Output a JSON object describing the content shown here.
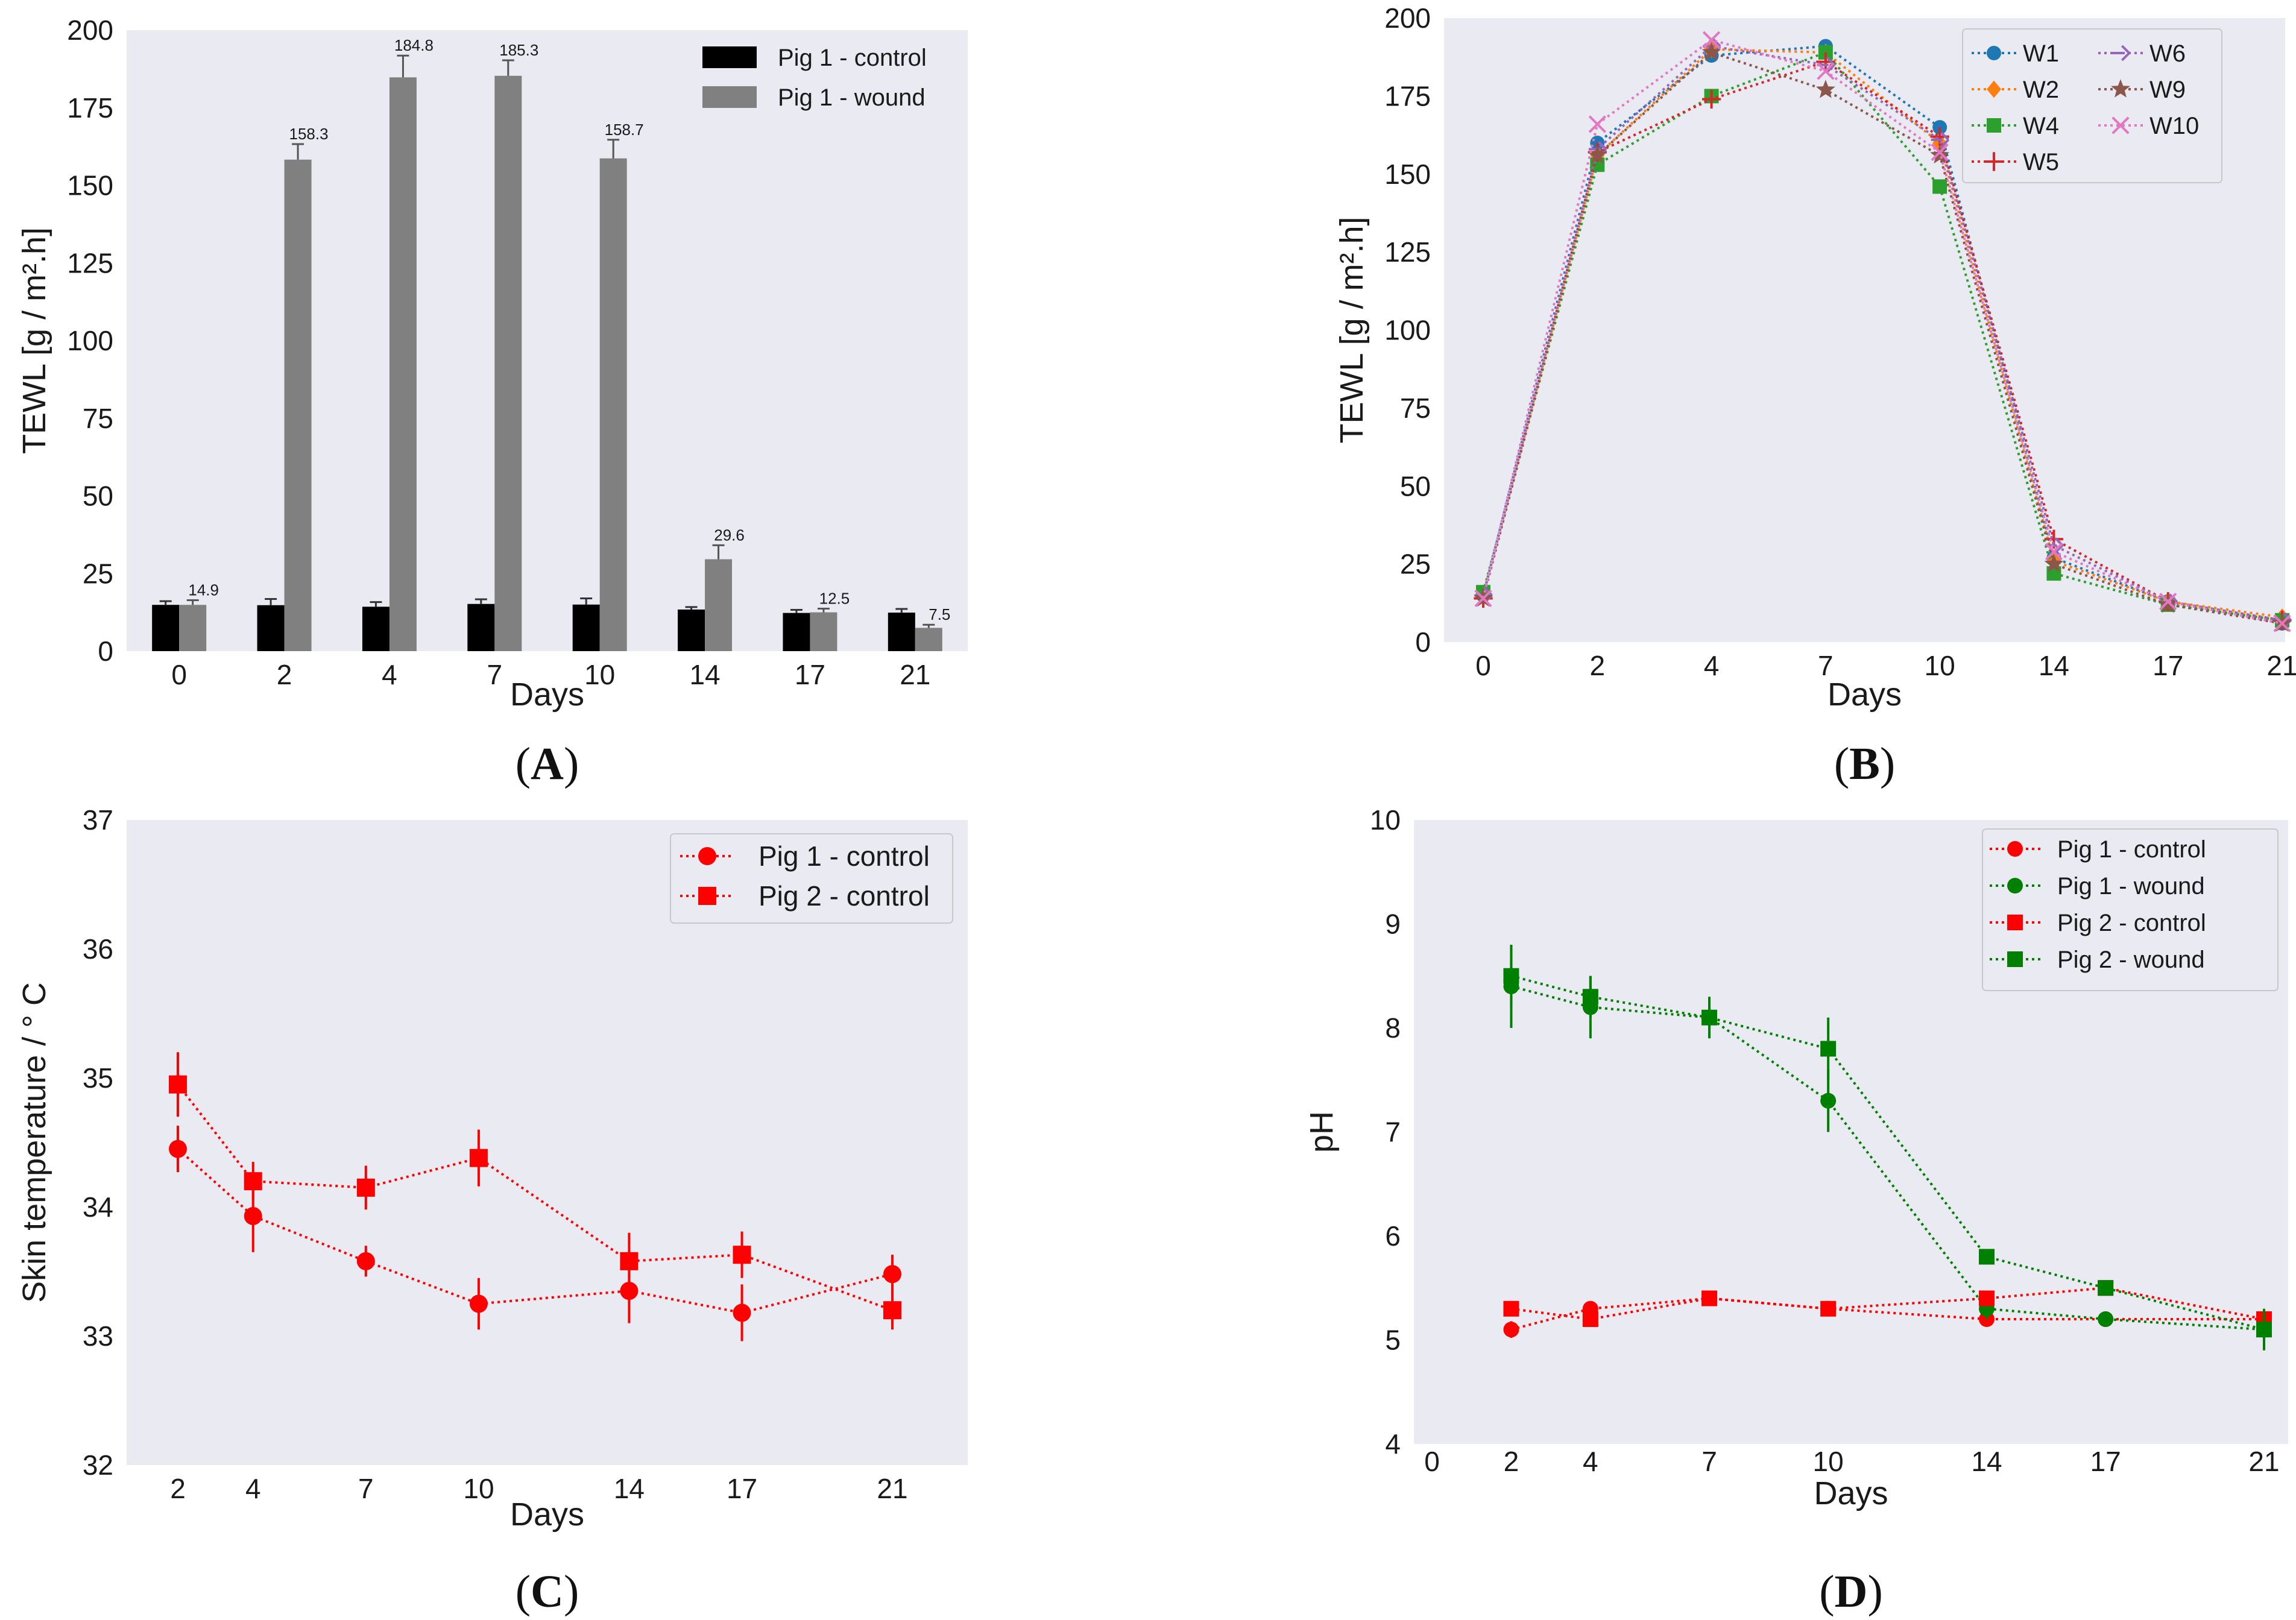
{
  "chart_data": [
    {
      "id": "A",
      "panel_label": "A",
      "type": "bar",
      "xlabel": "Days",
      "ylabel": "TEWL [g / m².h]",
      "ylim": [
        0,
        200
      ],
      "yticks": [
        0,
        25,
        50,
        75,
        100,
        125,
        150,
        175,
        200
      ],
      "categories": [
        "0",
        "2",
        "4",
        "7",
        "10",
        "14",
        "17",
        "21"
      ],
      "series": [
        {
          "name": "Pig 1 - control",
          "color": "#000000",
          "values": [
            14.9,
            14.8,
            14.3,
            15.2,
            15.0,
            13.4,
            12.3,
            12.4
          ],
          "errors": [
            1.2,
            2.0,
            1.5,
            1.5,
            2.0,
            0.8,
            1.0,
            1.2
          ]
        },
        {
          "name": "Pig 1 - wound",
          "color": "#808080",
          "values": [
            14.9,
            158.3,
            184.8,
            185.3,
            158.7,
            29.6,
            12.5,
            7.5
          ],
          "errors": [
            1.5,
            5.0,
            7.0,
            5.0,
            6.0,
            4.5,
            1.2,
            1.0
          ]
        }
      ],
      "data_labels": [
        "14.9",
        "158.3",
        "184.8",
        "185.3",
        "158.7",
        "29.6",
        "12.5",
        "7.5"
      ],
      "legend": "top-right"
    },
    {
      "id": "B",
      "panel_label": "B",
      "type": "line",
      "xlabel": "Days",
      "ylabel": "TEWL [g / m².h]",
      "ylim": [
        0,
        200
      ],
      "yticks": [
        0,
        25,
        50,
        75,
        100,
        125,
        150,
        175,
        200
      ],
      "x": [
        0,
        2,
        4,
        7,
        10,
        14,
        17,
        21
      ],
      "series": [
        {
          "name": "W1",
          "color": "#1f77b4",
          "marker": "circle",
          "values": [
            15,
            160,
            188,
            191,
            165,
            27,
            13,
            6
          ]
        },
        {
          "name": "W2",
          "color": "#ff7f0e",
          "marker": "diamond",
          "values": [
            15,
            156,
            190,
            189,
            160,
            26,
            13,
            8
          ]
        },
        {
          "name": "W4",
          "color": "#2ca02c",
          "marker": "square",
          "values": [
            16,
            153,
            175,
            189,
            146,
            22,
            12,
            7
          ]
        },
        {
          "name": "W5",
          "color": "#d62728",
          "marker": "plus",
          "values": [
            14,
            157,
            174,
            186,
            162,
            33,
            13,
            7
          ]
        },
        {
          "name": "W6",
          "color": "#9467bd",
          "marker": "tri",
          "values": [
            15,
            158,
            191,
            185,
            161,
            31,
            13,
            7
          ]
        },
        {
          "name": "W9",
          "color": "#8c564b",
          "marker": "star",
          "values": [
            14,
            156,
            189,
            177,
            156,
            25,
            12,
            6
          ]
        },
        {
          "name": "W10",
          "color": "#e377c2",
          "marker": "x",
          "values": [
            14,
            166,
            193,
            183,
            157,
            29,
            13,
            6
          ]
        }
      ],
      "legend": "top-right"
    },
    {
      "id": "C",
      "panel_label": "C",
      "type": "line",
      "xlabel": "Days",
      "ylabel": "Skin temperature / ° C",
      "ylim": [
        32,
        37
      ],
      "yticks": [
        32,
        33,
        34,
        35,
        36,
        37
      ],
      "x": [
        2,
        4,
        7,
        10,
        14,
        17,
        21
      ],
      "series": [
        {
          "name": "Pig 1 - control",
          "color": "#ff0000",
          "marker": "circle",
          "values": [
            34.45,
            33.93,
            33.58,
            33.25,
            33.35,
            33.18,
            33.48
          ],
          "errors": [
            0.18,
            0.28,
            0.12,
            0.2,
            0.25,
            0.22,
            0.15
          ]
        },
        {
          "name": "Pig 2 - control",
          "color": "#ff0000",
          "marker": "square",
          "values": [
            34.95,
            34.2,
            34.15,
            34.38,
            33.58,
            33.63,
            33.2
          ],
          "errors": [
            0.25,
            0.15,
            0.17,
            0.22,
            0.22,
            0.18,
            0.15
          ]
        }
      ],
      "legend": "top-right"
    },
    {
      "id": "D",
      "panel_label": "D",
      "type": "line",
      "xlabel": "Days",
      "ylabel": "pH",
      "ylim": [
        4,
        10
      ],
      "yticks": [
        4,
        5,
        6,
        7,
        8,
        9,
        10
      ],
      "xticks": [
        0,
        2,
        4,
        7,
        10,
        14,
        17,
        21
      ],
      "x": [
        2,
        4,
        7,
        10,
        14,
        17,
        21
      ],
      "series": [
        {
          "name": "Pig 1 - control",
          "color": "#ff0000",
          "marker": "circle",
          "values": [
            5.1,
            5.3,
            5.4,
            5.3,
            5.2,
            5.2,
            5.2
          ],
          "errors": [
            0.08,
            0.06,
            0.05,
            0.05,
            0.05,
            0.05,
            0.05
          ]
        },
        {
          "name": "Pig 1 - wound",
          "color": "#008000",
          "marker": "circle",
          "values": [
            8.4,
            8.2,
            8.1,
            7.3,
            5.3,
            5.2,
            5.1
          ],
          "errors": [
            0.4,
            0.3,
            0.2,
            0.3,
            0.1,
            0.05,
            0.05
          ]
        },
        {
          "name": "Pig 2 - control",
          "color": "#ff0000",
          "marker": "square",
          "values": [
            5.3,
            5.2,
            5.4,
            5.3,
            5.4,
            5.5,
            5.2
          ],
          "errors": [
            0.05,
            0.05,
            0.05,
            0.05,
            0.05,
            0.05,
            0.05
          ]
        },
        {
          "name": "Pig 2 - wound",
          "color": "#008000",
          "marker": "square",
          "values": [
            8.5,
            8.3,
            8.1,
            7.8,
            5.8,
            5.5,
            5.1
          ],
          "errors": [
            0.3,
            0.2,
            0.15,
            0.3,
            0.05,
            0.05,
            0.2
          ]
        }
      ],
      "legend": "top-right"
    }
  ]
}
